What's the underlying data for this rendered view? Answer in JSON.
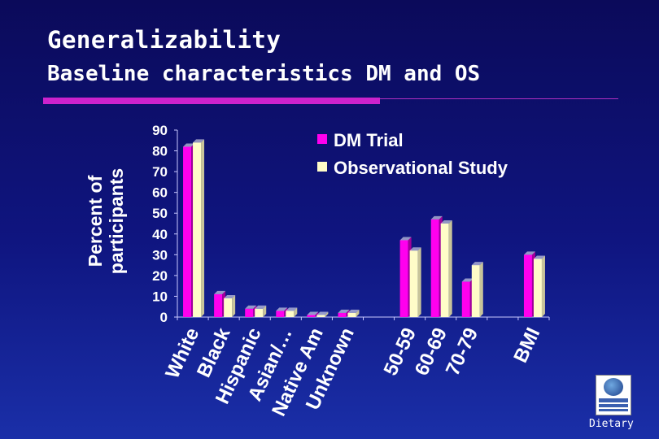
{
  "slide": {
    "title": "Generalizability",
    "subtitle": "Baseline characteristics DM and OS",
    "footer": "Dietary"
  },
  "colors": {
    "dm": "#ff00ee",
    "os": "#fffcc8",
    "accent": "#cc22cc",
    "background": "#0f1580"
  },
  "logo_icon": "whi-globe-logo",
  "chart_data": {
    "type": "bar",
    "ylabel": "Percent of participants",
    "ylim": [
      0,
      90
    ],
    "yticks": [
      0,
      10,
      20,
      30,
      40,
      50,
      60,
      70,
      80,
      90
    ],
    "grid": false,
    "legend_position": "top-right",
    "categories": [
      "White",
      "Black",
      "Hispanic",
      "Asian/…",
      "Native Am",
      "Unknown",
      "",
      "50-59",
      "60-69",
      "70-79",
      "",
      "BMI"
    ],
    "series": [
      {
        "name": "DM Trial",
        "values": [
          82,
          11,
          4,
          3,
          1,
          2,
          null,
          37,
          47,
          17,
          null,
          30
        ]
      },
      {
        "name": "Observational Study",
        "values": [
          84,
          9,
          4,
          3,
          1,
          2,
          null,
          32,
          45,
          25,
          null,
          28
        ]
      }
    ]
  }
}
